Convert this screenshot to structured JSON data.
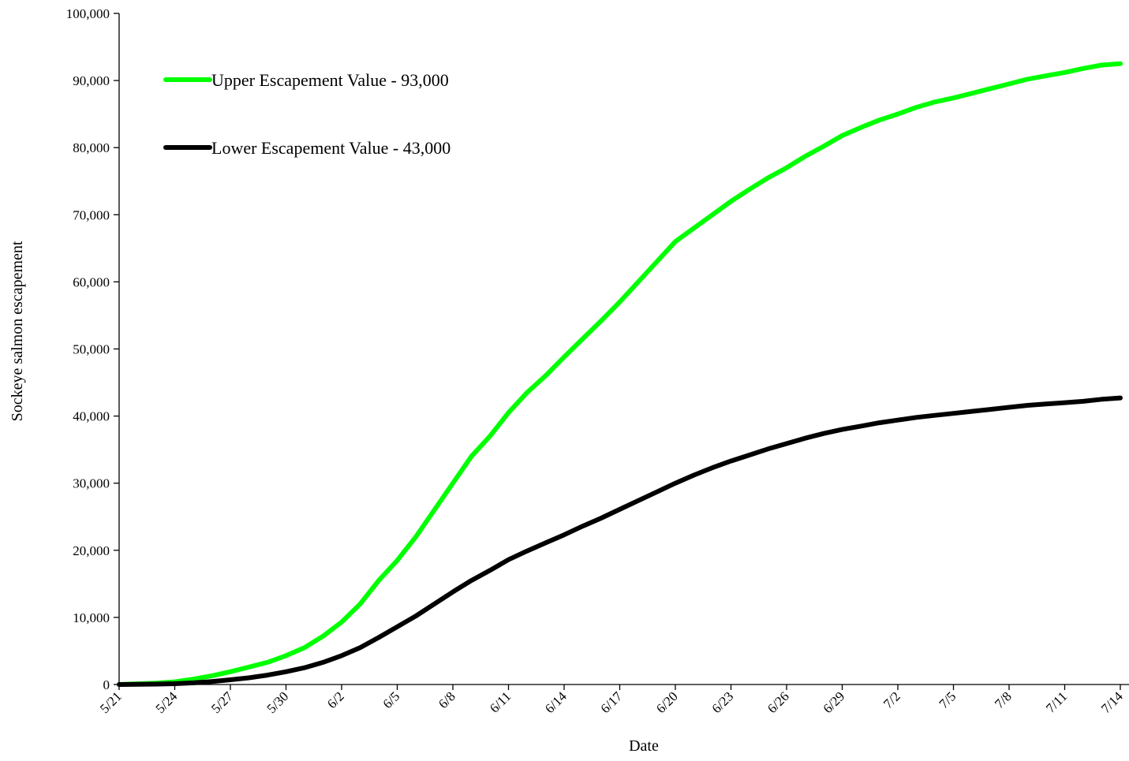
{
  "chart_data": {
    "type": "line",
    "title": "",
    "xlabel": "Date",
    "ylabel": "Sockeye salmon escapement",
    "ylim": [
      0,
      100000
    ],
    "y_ticks": [
      "0",
      "10,000",
      "20,000",
      "30,000",
      "40,000",
      "50,000",
      "60,000",
      "70,000",
      "80,000",
      "90,000",
      "100,000"
    ],
    "x_ticks": [
      "5/21",
      "5/24",
      "5/27",
      "5/30",
      "6/2",
      "6/5",
      "6/8",
      "6/11",
      "6/14",
      "6/17",
      "6/20",
      "6/23",
      "6/26",
      "6/29",
      "7/2",
      "7/5",
      "7/8",
      "7/11",
      "7/14"
    ],
    "x_range": [
      "5/21",
      "7/14"
    ],
    "grid": false,
    "legend_placement": "top-left",
    "series": [
      {
        "name": "Upper Escapement Value - 93,000",
        "color": "#00ff00",
        "points": [
          [
            "5/21",
            0
          ],
          [
            "5/22",
            100
          ],
          [
            "5/23",
            200
          ],
          [
            "5/24",
            400
          ],
          [
            "5/25",
            800
          ],
          [
            "5/26",
            1300
          ],
          [
            "5/27",
            1900
          ],
          [
            "5/28",
            2600
          ],
          [
            "5/29",
            3300
          ],
          [
            "5/30",
            4300
          ],
          [
            "5/31",
            5500
          ],
          [
            "6/1",
            7200
          ],
          [
            "6/2",
            9300
          ],
          [
            "6/3",
            12000
          ],
          [
            "6/4",
            15500
          ],
          [
            "6/5",
            18500
          ],
          [
            "6/6",
            22000
          ],
          [
            "6/7",
            26000
          ],
          [
            "6/8",
            30000
          ],
          [
            "6/9",
            34000
          ],
          [
            "6/10",
            37000
          ],
          [
            "6/11",
            40500
          ],
          [
            "6/12",
            43500
          ],
          [
            "6/13",
            46000
          ],
          [
            "6/14",
            48800
          ],
          [
            "6/15",
            51500
          ],
          [
            "6/16",
            54200
          ],
          [
            "6/17",
            57000
          ],
          [
            "6/18",
            60000
          ],
          [
            "6/19",
            63000
          ],
          [
            "6/20",
            66000
          ],
          [
            "6/21",
            68000
          ],
          [
            "6/22",
            70000
          ],
          [
            "6/23",
            72000
          ],
          [
            "6/24",
            73800
          ],
          [
            "6/25",
            75500
          ],
          [
            "6/26",
            77000
          ],
          [
            "6/27",
            78700
          ],
          [
            "6/28",
            80200
          ],
          [
            "6/29",
            81800
          ],
          [
            "6/30",
            83000
          ],
          [
            "7/1",
            84100
          ],
          [
            "7/2",
            85000
          ],
          [
            "7/3",
            86000
          ],
          [
            "7/4",
            86800
          ],
          [
            "7/5",
            87400
          ],
          [
            "7/6",
            88100
          ],
          [
            "7/7",
            88800
          ],
          [
            "7/8",
            89500
          ],
          [
            "7/9",
            90200
          ],
          [
            "7/10",
            90700
          ],
          [
            "7/11",
            91200
          ],
          [
            "7/12",
            91800
          ],
          [
            "7/13",
            92300
          ],
          [
            "7/14",
            92500
          ]
        ]
      },
      {
        "name": "Lower Escapement Value - 43,000",
        "color": "#000000",
        "points": [
          [
            "5/21",
            0
          ],
          [
            "5/22",
            30
          ],
          [
            "5/23",
            60
          ],
          [
            "5/24",
            120
          ],
          [
            "5/25",
            250
          ],
          [
            "5/26",
            450
          ],
          [
            "5/27",
            700
          ],
          [
            "5/28",
            1000
          ],
          [
            "5/29",
            1400
          ],
          [
            "5/30",
            1900
          ],
          [
            "5/31",
            2500
          ],
          [
            "6/1",
            3300
          ],
          [
            "6/2",
            4300
          ],
          [
            "6/3",
            5500
          ],
          [
            "6/4",
            7000
          ],
          [
            "6/5",
            8600
          ],
          [
            "6/6",
            10200
          ],
          [
            "6/7",
            12000
          ],
          [
            "6/8",
            13800
          ],
          [
            "6/9",
            15500
          ],
          [
            "6/10",
            17000
          ],
          [
            "6/11",
            18600
          ],
          [
            "6/12",
            19900
          ],
          [
            "6/13",
            21100
          ],
          [
            "6/14",
            22300
          ],
          [
            "6/15",
            23600
          ],
          [
            "6/16",
            24800
          ],
          [
            "6/17",
            26100
          ],
          [
            "6/18",
            27400
          ],
          [
            "6/19",
            28700
          ],
          [
            "6/20",
            30000
          ],
          [
            "6/21",
            31200
          ],
          [
            "6/22",
            32300
          ],
          [
            "6/23",
            33300
          ],
          [
            "6/24",
            34200
          ],
          [
            "6/25",
            35100
          ],
          [
            "6/26",
            35900
          ],
          [
            "6/27",
            36700
          ],
          [
            "6/28",
            37400
          ],
          [
            "6/29",
            38000
          ],
          [
            "6/30",
            38500
          ],
          [
            "7/1",
            39000
          ],
          [
            "7/2",
            39400
          ],
          [
            "7/3",
            39800
          ],
          [
            "7/4",
            40100
          ],
          [
            "7/5",
            40400
          ],
          [
            "7/6",
            40700
          ],
          [
            "7/7",
            41000
          ],
          [
            "7/8",
            41300
          ],
          [
            "7/9",
            41600
          ],
          [
            "7/10",
            41800
          ],
          [
            "7/11",
            42000
          ],
          [
            "7/12",
            42200
          ],
          [
            "7/13",
            42500
          ],
          [
            "7/14",
            42700
          ]
        ]
      }
    ]
  }
}
